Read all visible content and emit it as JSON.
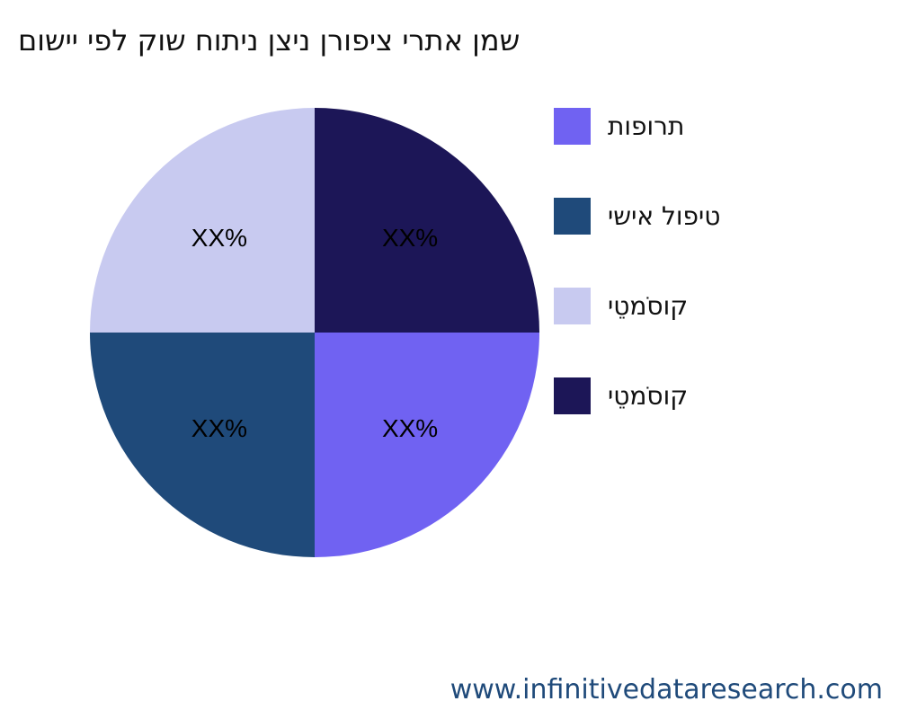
{
  "chart_data": {
    "type": "pie",
    "title": "םושיי יפל קוש חותינ ןצינ ןרופיצ ירתא ןמש",
    "slices": [
      {
        "label": "תופורת",
        "value": 25,
        "data_label": "XX%",
        "color": "#7062f2"
      },
      {
        "label": "ישיא לופיט",
        "value": 25,
        "data_label": "XX%",
        "color": "#1f4a7a"
      },
      {
        "label": "יטֵמסֹוק",
        "value": 25,
        "data_label": "XX%",
        "color": "#c8caf0"
      },
      {
        "label": "יטֵמסֹוק",
        "value": 25,
        "data_label": "XX%",
        "color": "#1c1657"
      }
    ],
    "legend_position": "right"
  },
  "footer": "www.infinitivedataresearch.com"
}
